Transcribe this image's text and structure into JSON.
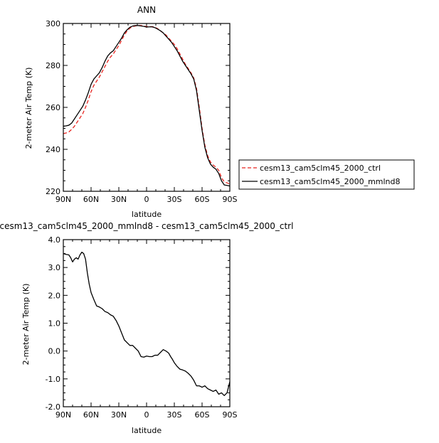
{
  "chart_data": [
    {
      "type": "line",
      "title": "ANN",
      "xlabel": "latitude",
      "ylabel": "2-meter Air Temp (K)",
      "xlim": [
        90,
        -90
      ],
      "ylim": [
        220,
        300
      ],
      "xtick_values": [
        90,
        60,
        30,
        0,
        -30,
        -60,
        -90
      ],
      "xtick_labels": [
        "90N",
        "60N",
        "30N",
        "0",
        "30S",
        "60S",
        "90S"
      ],
      "ytick_values": [
        220,
        240,
        260,
        280,
        300
      ],
      "ytick_labels": [
        "220",
        "240",
        "260",
        "280",
        "300"
      ],
      "grid": false,
      "legend_position": "right",
      "series": [
        {
          "name": "cesm13_cam5clm45_2000_ctrl",
          "color": "#e8231e",
          "dash": "dashed",
          "x": [
            90,
            87,
            84,
            81,
            78,
            75,
            72,
            69,
            66,
            63,
            60,
            57,
            54,
            51,
            48,
            45,
            42,
            39,
            36,
            33,
            30,
            27,
            24,
            21,
            18,
            15,
            12,
            9,
            6,
            3,
            0,
            -3,
            -6,
            -9,
            -12,
            -15,
            -18,
            -21,
            -24,
            -27,
            -30,
            -33,
            -36,
            -39,
            -42,
            -45,
            -48,
            -51,
            -54,
            -57,
            -60,
            -63,
            -66,
            -69,
            -72,
            -75,
            -78,
            -81,
            -84,
            -87,
            -90
          ],
          "y": [
            247.5,
            247.8,
            248.3,
            249.5,
            251.0,
            253.0,
            255.0,
            257.0,
            260.0,
            263.5,
            267.5,
            270.5,
            272.5,
            274.5,
            277.0,
            279.5,
            282.0,
            284.0,
            285.5,
            287.5,
            289.5,
            292.0,
            294.5,
            296.5,
            297.8,
            298.5,
            298.8,
            299.0,
            299.0,
            298.8,
            298.5,
            298.5,
            298.5,
            298.2,
            297.5,
            296.5,
            295.5,
            294.5,
            293.0,
            291.5,
            290.0,
            288.0,
            285.5,
            283.0,
            280.5,
            278.5,
            276.5,
            274.0,
            269.0,
            260.0,
            250.0,
            242.0,
            237.0,
            234.0,
            232.5,
            231.5,
            230.0,
            226.5,
            224.5,
            224.0,
            223.5
          ]
        },
        {
          "name": "cesm13_cam5clm45_2000_mmlnd8",
          "color": "#000000",
          "dash": "solid",
          "x": [
            90,
            87,
            84,
            81,
            78,
            75,
            72,
            69,
            66,
            63,
            60,
            57,
            54,
            51,
            48,
            45,
            42,
            39,
            36,
            33,
            30,
            27,
            24,
            21,
            18,
            15,
            12,
            9,
            6,
            3,
            0,
            -3,
            -6,
            -9,
            -12,
            -15,
            -18,
            -21,
            -24,
            -27,
            -30,
            -33,
            -36,
            -39,
            -42,
            -45,
            -48,
            -51,
            -54,
            -57,
            -60,
            -63,
            -66,
            -69,
            -72,
            -75,
            -78,
            -81,
            -84,
            -87,
            -90
          ],
          "y": [
            251.0,
            251.2,
            251.5,
            252.5,
            254.5,
            256.5,
            258.5,
            260.5,
            263.5,
            267.0,
            271.0,
            273.5,
            275.0,
            276.5,
            279.0,
            282.0,
            284.5,
            286.0,
            287.0,
            289.0,
            291.0,
            293.0,
            295.5,
            297.0,
            298.2,
            298.8,
            299.0,
            299.0,
            298.8,
            298.6,
            298.3,
            298.4,
            298.4,
            298.0,
            297.3,
            296.5,
            295.5,
            294.0,
            292.5,
            291.0,
            289.0,
            287.0,
            284.5,
            282.0,
            280.0,
            278.0,
            276.0,
            273.5,
            268.0,
            258.5,
            249.0,
            241.0,
            236.0,
            233.0,
            231.5,
            230.5,
            228.5,
            225.0,
            223.0,
            222.8,
            222.5
          ]
        }
      ]
    },
    {
      "type": "line",
      "title": "cesm13_cam5clm45_2000_mmlnd8 - cesm13_cam5clm45_2000_ctrl",
      "xlabel": "latitude",
      "ylabel": "2-meter Air Temp (K)",
      "xlim": [
        90,
        -90
      ],
      "ylim": [
        -2.0,
        4.0
      ],
      "xtick_values": [
        90,
        60,
        30,
        0,
        -30,
        -60,
        -90
      ],
      "xtick_labels": [
        "90N",
        "60N",
        "30N",
        "0",
        "30S",
        "60S",
        "90S"
      ],
      "ytick_values": [
        -2.0,
        -1.0,
        0.0,
        1.0,
        2.0,
        3.0,
        4.0
      ],
      "ytick_labels": [
        "-2.0",
        "-1.0",
        "0.0",
        "1.0",
        "2.0",
        "3.0",
        "4.0"
      ],
      "grid": false,
      "series": [
        {
          "color": "#000000",
          "dash": "solid",
          "x": [
            90,
            87,
            84,
            82,
            80,
            78,
            76,
            74,
            72,
            70,
            68,
            66,
            64,
            62,
            60,
            57,
            54,
            51,
            48,
            45,
            42,
            39,
            36,
            33,
            30,
            27,
            24,
            21,
            18,
            15,
            12,
            9,
            6,
            3,
            0,
            -3,
            -6,
            -9,
            -12,
            -15,
            -18,
            -21,
            -24,
            -26,
            -28,
            -30,
            -33,
            -36,
            -39,
            -42,
            -45,
            -48,
            -51,
            -54,
            -57,
            -60,
            -63,
            -66,
            -69,
            -72,
            -75,
            -78,
            -81,
            -84,
            -87,
            -90
          ],
          "y": [
            3.5,
            3.47,
            3.45,
            3.35,
            3.2,
            3.3,
            3.35,
            3.3,
            3.45,
            3.55,
            3.5,
            3.3,
            2.8,
            2.4,
            2.1,
            1.85,
            1.62,
            1.58,
            1.52,
            1.42,
            1.38,
            1.3,
            1.25,
            1.1,
            0.9,
            0.65,
            0.4,
            0.3,
            0.2,
            0.2,
            0.1,
            0.0,
            -0.2,
            -0.22,
            -0.18,
            -0.2,
            -0.2,
            -0.15,
            -0.15,
            -0.05,
            0.05,
            0.0,
            -0.08,
            -0.2,
            -0.3,
            -0.42,
            -0.55,
            -0.65,
            -0.68,
            -0.72,
            -0.8,
            -0.9,
            -1.05,
            -1.25,
            -1.25,
            -1.3,
            -1.25,
            -1.35,
            -1.4,
            -1.45,
            -1.4,
            -1.55,
            -1.5,
            -1.6,
            -1.5,
            -1.1
          ]
        }
      ]
    }
  ]
}
